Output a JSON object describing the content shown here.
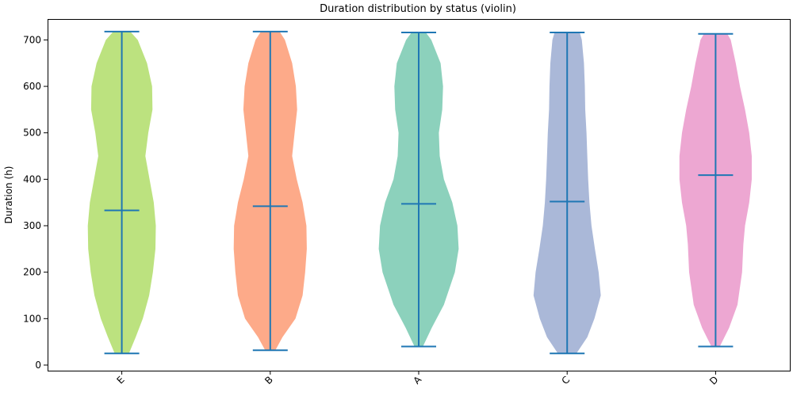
{
  "chart_data": {
    "type": "violin",
    "title": "Duration distribution by status (violin)",
    "xlabel": "",
    "ylabel": "Duration (h)",
    "ylim": [
      -12,
      745
    ],
    "yticks": [
      0,
      100,
      200,
      300,
      400,
      500,
      600,
      700
    ],
    "categories": [
      "E",
      "B",
      "A",
      "C",
      "D"
    ],
    "colors": [
      "#a6d854",
      "#fc8d62",
      "#66c2a5",
      "#8da0cb",
      "#e78ac3"
    ],
    "line_color": "#1f77b4",
    "series": [
      {
        "category": "E",
        "min": 25,
        "max": 718,
        "median": 333,
        "profile": [
          [
            25,
            0.17
          ],
          [
            60,
            0.33
          ],
          [
            100,
            0.5
          ],
          [
            150,
            0.65
          ],
          [
            200,
            0.74
          ],
          [
            250,
            0.8
          ],
          [
            300,
            0.81
          ],
          [
            350,
            0.76
          ],
          [
            400,
            0.66
          ],
          [
            450,
            0.56
          ],
          [
            500,
            0.63
          ],
          [
            550,
            0.73
          ],
          [
            600,
            0.72
          ],
          [
            650,
            0.6
          ],
          [
            700,
            0.38
          ],
          [
            718,
            0.2
          ]
        ]
      },
      {
        "category": "B",
        "min": 32,
        "max": 718,
        "median": 342,
        "profile": [
          [
            32,
            0.12
          ],
          [
            60,
            0.29
          ],
          [
            100,
            0.6
          ],
          [
            150,
            0.77
          ],
          [
            200,
            0.83
          ],
          [
            250,
            0.87
          ],
          [
            300,
            0.86
          ],
          [
            350,
            0.77
          ],
          [
            400,
            0.63
          ],
          [
            450,
            0.52
          ],
          [
            500,
            0.58
          ],
          [
            550,
            0.64
          ],
          [
            600,
            0.61
          ],
          [
            650,
            0.52
          ],
          [
            700,
            0.35
          ],
          [
            718,
            0.22
          ]
        ]
      },
      {
        "category": "A",
        "min": 40,
        "max": 716,
        "median": 347,
        "profile": [
          [
            40,
            0.1
          ],
          [
            80,
            0.31
          ],
          [
            130,
            0.6
          ],
          [
            200,
            0.86
          ],
          [
            250,
            0.95
          ],
          [
            300,
            0.92
          ],
          [
            350,
            0.8
          ],
          [
            400,
            0.6
          ],
          [
            450,
            0.5
          ],
          [
            500,
            0.48
          ],
          [
            550,
            0.56
          ],
          [
            600,
            0.58
          ],
          [
            650,
            0.52
          ],
          [
            700,
            0.3
          ],
          [
            716,
            0.17
          ]
        ]
      },
      {
        "category": "C",
        "min": 25,
        "max": 716,
        "median": 352,
        "profile": [
          [
            25,
            0.22
          ],
          [
            60,
            0.48
          ],
          [
            100,
            0.65
          ],
          [
            150,
            0.8
          ],
          [
            200,
            0.75
          ],
          [
            250,
            0.66
          ],
          [
            300,
            0.58
          ],
          [
            350,
            0.53
          ],
          [
            400,
            0.5
          ],
          [
            450,
            0.48
          ],
          [
            500,
            0.46
          ],
          [
            550,
            0.43
          ],
          [
            600,
            0.42
          ],
          [
            650,
            0.4
          ],
          [
            700,
            0.35
          ],
          [
            716,
            0.3
          ]
        ]
      },
      {
        "category": "D",
        "min": 40,
        "max": 713,
        "median": 409,
        "profile": [
          [
            40,
            0.1
          ],
          [
            80,
            0.32
          ],
          [
            130,
            0.52
          ],
          [
            200,
            0.63
          ],
          [
            260,
            0.66
          ],
          [
            300,
            0.7
          ],
          [
            350,
            0.8
          ],
          [
            400,
            0.86
          ],
          [
            450,
            0.86
          ],
          [
            500,
            0.8
          ],
          [
            550,
            0.7
          ],
          [
            600,
            0.58
          ],
          [
            650,
            0.48
          ],
          [
            700,
            0.36
          ],
          [
            713,
            0.28
          ]
        ]
      }
    ]
  }
}
